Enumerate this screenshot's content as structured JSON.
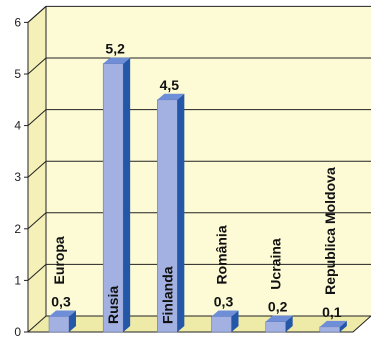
{
  "chart_data": {
    "type": "bar",
    "categories": [
      "Europa",
      "Rusia",
      "Finlanda",
      "România",
      "Ucraina",
      "Republica Moldova"
    ],
    "values": [
      0.3,
      5.2,
      4.5,
      0.3,
      0.2,
      0.1
    ],
    "value_labels": [
      "0,3",
      "5,2",
      "4,5",
      "0,3",
      "0,2",
      "0,1"
    ],
    "y_ticks": [
      "0",
      "1",
      "2",
      "3",
      "4",
      "5",
      "6"
    ],
    "ylim": [
      0,
      6
    ],
    "grid": true,
    "title": "",
    "xlabel": "",
    "ylabel": "",
    "colors": {
      "background": "#fdfbd6",
      "bar_front": "#a3b1e2",
      "bar_side": "#2457a8",
      "bar_top": "#6f8ed8",
      "grid": "#222222",
      "axis": "#222222"
    }
  }
}
